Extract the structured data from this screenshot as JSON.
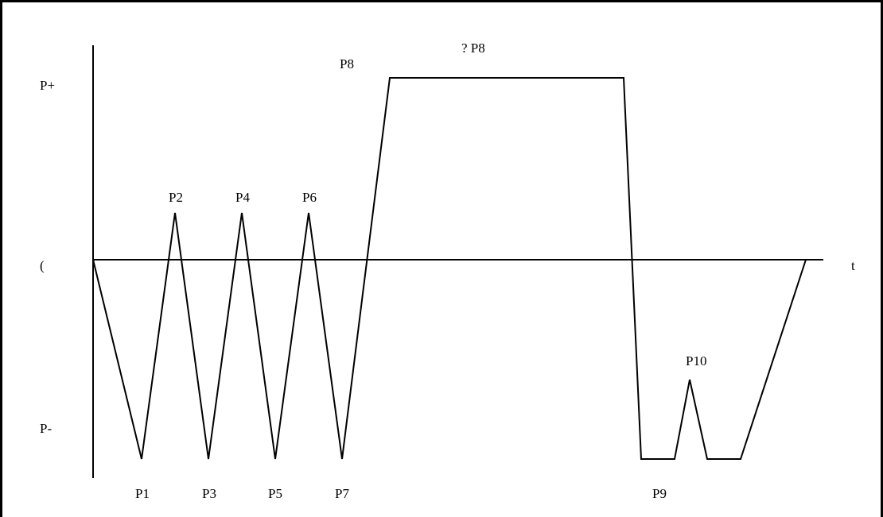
{
  "diagram": {
    "y_axis_labels": {
      "positive": "P+",
      "zero": "(",
      "negative": "P-"
    },
    "x_axis_label": "t",
    "points": [
      {
        "id": "p1",
        "label": "P1"
      },
      {
        "id": "p2",
        "label": "P2"
      },
      {
        "id": "p3",
        "label": "P3"
      },
      {
        "id": "p4",
        "label": "P4"
      },
      {
        "id": "p5",
        "label": "P5"
      },
      {
        "id": "p6",
        "label": "P6"
      },
      {
        "id": "p7",
        "label": "P7"
      },
      {
        "id": "p8",
        "label": "P8"
      },
      {
        "id": "p8-duration",
        "label": "? P8"
      },
      {
        "id": "p9",
        "label": "P9"
      },
      {
        "id": "p10",
        "label": "P10"
      }
    ],
    "colors": {
      "line": "#000000",
      "background": "#ffffff"
    }
  }
}
